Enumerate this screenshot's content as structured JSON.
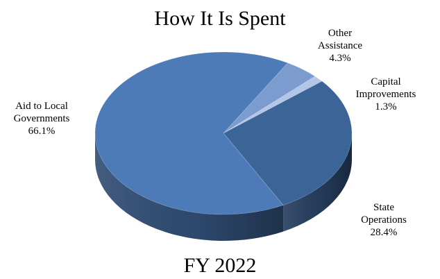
{
  "chart_data": {
    "type": "pie",
    "title": "How It Is Spent",
    "footer": "FY 2022",
    "slices": [
      {
        "lines": [
          "Other",
          "Assistance"
        ],
        "label": "Other Assistance",
        "value": 4.3,
        "value_label": "4.3%",
        "color": "#7C9CD0"
      },
      {
        "lines": [
          "Capital",
          "Improvements"
        ],
        "label": "Capital Improvements",
        "value": 1.3,
        "value_label": "1.3%",
        "color": "#B4C6E7"
      },
      {
        "lines": [
          "State",
          "Operations"
        ],
        "label": "State Operations",
        "value": 28.4,
        "value_label": "28.4%",
        "color": "#3B6497"
      },
      {
        "lines": [
          "Aid to Local",
          "Governments"
        ],
        "label": "Aid to Local Governments",
        "value": 66.1,
        "value_label": "66.1%",
        "color": "#4C7BB8"
      }
    ]
  }
}
